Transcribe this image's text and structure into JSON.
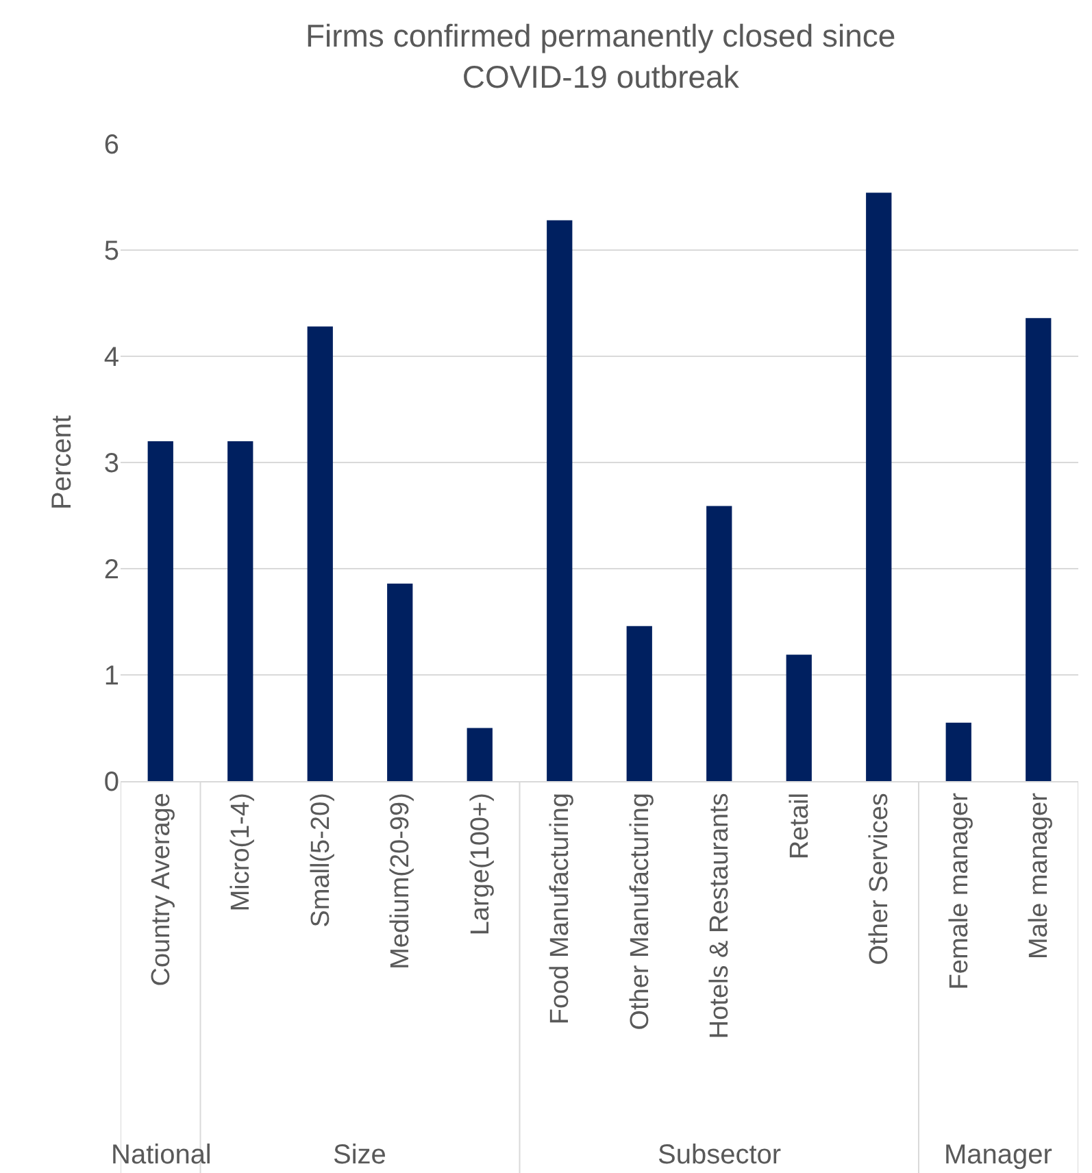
{
  "chart_data": {
    "type": "bar",
    "title": "Firms confirmed permanently closed since COVID-19 outbreak",
    "ylabel": "Percent",
    "categories": [
      "Country Average",
      "Micro(1-4)",
      "Small(5-20)",
      "Medium(20-99)",
      "Large(100+)",
      "Food Manufacturing",
      "Other Manufacturing",
      "Hotels & Restaurants",
      "Retail",
      "Other Services",
      "Female manager",
      "Male manager"
    ],
    "values": [
      3.2,
      3.2,
      4.28,
      1.86,
      0.5,
      5.28,
      1.46,
      2.59,
      1.19,
      5.54,
      0.55,
      4.36
    ],
    "color": "#002060",
    "ylim": [
      0,
      6
    ],
    "yticks": [
      0,
      1,
      2,
      3,
      4,
      5,
      6
    ],
    "grid": "y",
    "legend": false,
    "annotations": [
      "National",
      "Size",
      "Subsector",
      "Manager"
    ]
  }
}
